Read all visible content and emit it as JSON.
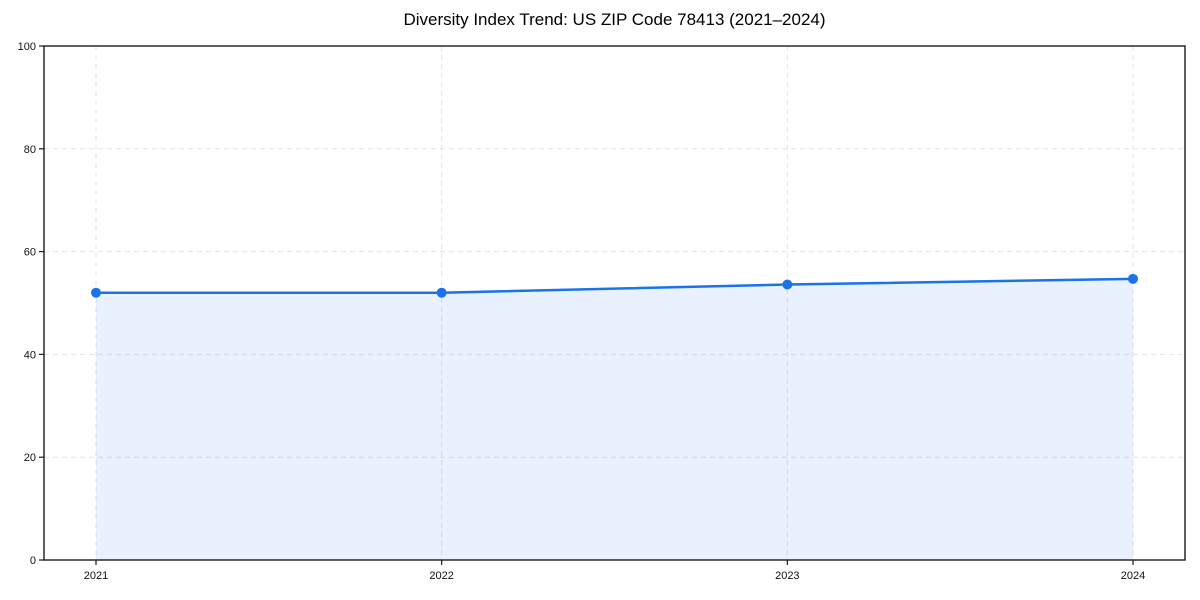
{
  "page": {
    "background_color": "#ffffff"
  },
  "chart_data": {
    "type": "line",
    "title": "Diversity Index Trend: US ZIP Code 78413 (2021–2024)",
    "x": [
      2021,
      2022,
      2023,
      2024
    ],
    "xtick_labels": [
      "2021",
      "2022",
      "2023",
      "2024"
    ],
    "values": [
      52,
      52,
      53.6,
      54.7
    ],
    "xlabel": "",
    "ylabel": "",
    "ylim": [
      0,
      100
    ],
    "yticks": [
      0,
      20,
      40,
      60,
      80,
      100
    ],
    "grid": true,
    "grid_line_style": "dashed",
    "grid_color": "#e3e3e3",
    "legend": "none",
    "line_color": "#1a73e8",
    "marker": "circle",
    "marker_color": "#1a73e8",
    "area_fill": true,
    "fill_color": "#1a73e8",
    "fill_opacity": 0.1,
    "spine_color": "#1a1a1a",
    "tick_label_color": "#111111"
  }
}
